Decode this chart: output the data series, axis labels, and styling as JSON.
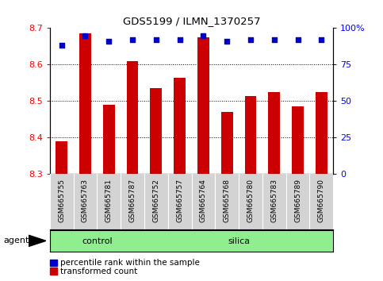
{
  "title": "GDS5199 / ILMN_1370257",
  "samples": [
    "GSM665755",
    "GSM665763",
    "GSM665781",
    "GSM665787",
    "GSM665752",
    "GSM665757",
    "GSM665764",
    "GSM665768",
    "GSM665780",
    "GSM665783",
    "GSM665789",
    "GSM665790"
  ],
  "transformed_counts": [
    8.39,
    8.685,
    8.49,
    8.61,
    8.535,
    8.565,
    8.675,
    8.47,
    8.515,
    8.525,
    8.485,
    8.525
  ],
  "percentile_ranks": [
    88,
    95,
    91,
    92,
    92,
    92,
    95,
    91,
    92,
    92,
    92,
    92
  ],
  "bar_baseline": 8.3,
  "ylim_left": [
    8.3,
    8.7
  ],
  "ylim_right": [
    0,
    100
  ],
  "yticks_left": [
    8.3,
    8.4,
    8.5,
    8.6,
    8.7
  ],
  "yticks_right": [
    0,
    25,
    50,
    75,
    100
  ],
  "bar_color": "#cc0000",
  "dot_color": "#0000cc",
  "control_color": "#90ee90",
  "silica_color": "#90ee90",
  "n_control": 4,
  "agent_label": "agent",
  "control_label": "control",
  "silica_label": "silica",
  "legend_bar_label": "transformed count",
  "legend_dot_label": "percentile rank within the sample",
  "grid_lines": [
    8.4,
    8.5,
    8.6
  ]
}
